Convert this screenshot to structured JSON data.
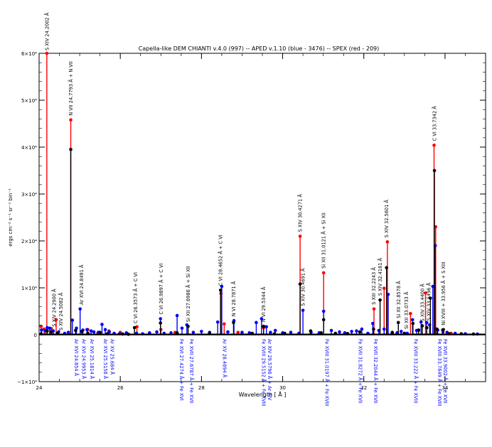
{
  "chart_data": {
    "type": "scatter",
    "title": "Capella-like DEM  CHIANTI v.4.0 (997) -- APED v.1.10 (blue - 3476) -- SPEX (red - 209)",
    "xlabel": "Wavelength [ Å ]",
    "ylabel": "ergs cm⁻² s⁻¹ sr⁻¹ bin⁻¹",
    "xlim": [
      24,
      35
    ],
    "ylim": [
      -10000,
      60000
    ],
    "x_ticks": [
      24,
      26,
      28,
      30,
      32,
      34
    ],
    "y_ticks": [
      {
        "value": -10000,
        "label": "−1×10⁴"
      },
      {
        "value": 0,
        "label": "0"
      },
      {
        "value": 10000,
        "label": "1×10⁴"
      },
      {
        "value": 20000,
        "label": "2×10⁴"
      },
      {
        "value": 30000,
        "label": "3×10⁴"
      },
      {
        "value": 40000,
        "label": "4×10⁴"
      },
      {
        "value": 50000,
        "label": "5×10⁴"
      },
      {
        "value": 60000,
        "label": "6×10⁴"
      }
    ],
    "colors": {
      "chianti": "#000000",
      "aped": "#0000ff",
      "spex": "#ff0000",
      "axis": "#000000"
    },
    "series": [
      {
        "name": "CHIANTI",
        "color": "#000000",
        "points": [
          [
            24.05,
            200
          ],
          [
            24.2,
            800
          ],
          [
            24.3,
            600
          ],
          [
            24.45,
            300
          ],
          [
            24.78,
            39500
          ],
          [
            24.9,
            900
          ],
          [
            25.05,
            700
          ],
          [
            25.2,
            300
          ],
          [
            25.5,
            500
          ],
          [
            25.68,
            200
          ],
          [
            26.06,
            150
          ],
          [
            26.2,
            100
          ],
          [
            26.35,
            1500
          ],
          [
            26.99,
            2500
          ],
          [
            27.4,
            400
          ],
          [
            27.67,
            1800
          ],
          [
            28.2,
            300
          ],
          [
            28.47,
            9500
          ],
          [
            28.79,
            2600
          ],
          [
            29.25,
            300
          ],
          [
            29.53,
            1800
          ],
          [
            29.8,
            200
          ],
          [
            30.05,
            300
          ],
          [
            30.43,
            10800
          ],
          [
            30.69,
            800
          ],
          [
            30.95,
            400
          ],
          [
            31.01,
            3200
          ],
          [
            31.3,
            300
          ],
          [
            31.6,
            250
          ],
          [
            31.9,
            600
          ],
          [
            32.24,
            1200
          ],
          [
            32.4,
            7400
          ],
          [
            32.56,
            14300
          ],
          [
            32.7,
            500
          ],
          [
            32.85,
            2600
          ],
          [
            33.0,
            300
          ],
          [
            33.21,
            2400
          ],
          [
            33.35,
            1000
          ],
          [
            33.44,
            1900
          ],
          [
            33.55,
            1500
          ],
          [
            33.64,
            7800
          ],
          [
            33.74,
            35000
          ],
          [
            33.8,
            1200
          ],
          [
            33.96,
            1100
          ],
          [
            34.1,
            200
          ],
          [
            34.4,
            200
          ],
          [
            34.7,
            150
          ]
        ]
      },
      {
        "name": "APED",
        "color": "#0000ff",
        "points": [
          [
            24.06,
            1000
          ],
          [
            24.15,
            900
          ],
          [
            24.2,
            1500
          ],
          [
            24.26,
            1400
          ],
          [
            24.35,
            800
          ],
          [
            24.48,
            600
          ],
          [
            24.63,
            300
          ],
          [
            24.72,
            500
          ],
          [
            24.82,
            3100
          ],
          [
            24.92,
            1400
          ],
          [
            25.01,
            5500
          ],
          [
            25.08,
            1000
          ],
          [
            25.18,
            1100
          ],
          [
            25.28,
            800
          ],
          [
            25.35,
            600
          ],
          [
            25.46,
            500
          ],
          [
            25.55,
            2200
          ],
          [
            25.63,
            1100
          ],
          [
            25.73,
            600
          ],
          [
            25.85,
            300
          ],
          [
            25.98,
            200
          ],
          [
            26.15,
            400
          ],
          [
            26.4,
            300
          ],
          [
            26.55,
            200
          ],
          [
            26.72,
            400
          ],
          [
            26.9,
            600
          ],
          [
            26.99,
            3400
          ],
          [
            27.08,
            300
          ],
          [
            27.25,
            400
          ],
          [
            27.4,
            4100
          ],
          [
            27.52,
            1400
          ],
          [
            27.64,
            2100
          ],
          [
            27.8,
            500
          ],
          [
            28.0,
            700
          ],
          [
            28.2,
            500
          ],
          [
            28.4,
            2700
          ],
          [
            28.5,
            10300
          ],
          [
            28.65,
            600
          ],
          [
            28.8,
            3000
          ],
          [
            29.0,
            500
          ],
          [
            29.18,
            400
          ],
          [
            29.35,
            2600
          ],
          [
            29.48,
            3400
          ],
          [
            29.6,
            1700
          ],
          [
            29.7,
            500
          ],
          [
            29.82,
            900
          ],
          [
            30.0,
            400
          ],
          [
            30.2,
            500
          ],
          [
            30.4,
            300
          ],
          [
            30.5,
            5200
          ],
          [
            30.7,
            500
          ],
          [
            30.9,
            400
          ],
          [
            31.01,
            5000
          ],
          [
            31.2,
            900
          ],
          [
            31.4,
            600
          ],
          [
            31.53,
            400
          ],
          [
            31.6,
            200
          ],
          [
            31.7,
            700
          ],
          [
            31.82,
            800
          ],
          [
            31.95,
            1200
          ],
          [
            32.1,
            300
          ],
          [
            32.22,
            2400
          ],
          [
            32.37,
            900
          ],
          [
            32.5,
            1200
          ],
          [
            32.6,
            8600
          ],
          [
            32.7,
            400
          ],
          [
            32.82,
            400
          ],
          [
            32.92,
            700
          ],
          [
            33.07,
            300
          ],
          [
            33.2,
            3200
          ],
          [
            33.3,
            900
          ],
          [
            33.41,
            2700
          ],
          [
            33.55,
            2600
          ],
          [
            33.62,
            2100
          ],
          [
            33.7,
            10300
          ],
          [
            33.76,
            19000
          ],
          [
            33.82,
            1000
          ],
          [
            33.94,
            1000
          ],
          [
            34.05,
            500
          ],
          [
            34.25,
            300
          ],
          [
            34.5,
            200
          ],
          [
            34.8,
            150
          ]
        ]
      },
      {
        "name": "SPEX",
        "color": "#ff0000",
        "points": [
          [
            24.05,
            1800
          ],
          [
            24.12,
            1200
          ],
          [
            24.19,
            60000
          ],
          [
            24.3,
            1300
          ],
          [
            24.42,
            3200
          ],
          [
            24.78,
            45800
          ],
          [
            25.2,
            1100
          ],
          [
            25.45,
            400
          ],
          [
            25.72,
            800
          ],
          [
            26.0,
            500
          ],
          [
            26.41,
            1700
          ],
          [
            27.0,
            1100
          ],
          [
            27.35,
            500
          ],
          [
            28.48,
            8800
          ],
          [
            28.56,
            2300
          ],
          [
            28.9,
            500
          ],
          [
            29.53,
            1500
          ],
          [
            30.43,
            21000
          ],
          [
            31.01,
            13200
          ],
          [
            32.25,
            5500
          ],
          [
            32.5,
            9900
          ],
          [
            32.58,
            19800
          ],
          [
            33.15,
            4500
          ],
          [
            33.35,
            900
          ],
          [
            33.52,
            8900
          ],
          [
            33.73,
            40400
          ],
          [
            33.77,
            23000
          ],
          [
            33.95,
            600
          ],
          [
            34.15,
            300
          ]
        ]
      }
    ],
    "labels_top": [
      {
        "x": 24.19,
        "text": "S   XIV 24.2002 Å"
      },
      {
        "x": 24.37,
        "text": "S   XIV 24.2900 Å"
      },
      {
        "x": 24.53,
        "text": "S   XIV 24.5082 Å"
      },
      {
        "x": 24.78,
        "text": "N   VII 24.7793 Å + N  VII"
      },
      {
        "x": 25.04,
        "text": "Ar XVI 24.8491 Å"
      },
      {
        "x": 26.37,
        "text": "C   VI 26.3573 Å + C  VI"
      },
      {
        "x": 27.0,
        "text": "C   VI 26.9897 Å + C  VI"
      },
      {
        "x": 27.67,
        "text": "Si XII 27.6986 Å + Si XII"
      },
      {
        "x": 28.47,
        "text": "C   VI 28.4652 Å + C  VI"
      },
      {
        "x": 28.79,
        "text": "N   VI 28.7871 Å"
      },
      {
        "x": 29.53,
        "text": "N   VI 29.5344 Å"
      },
      {
        "x": 30.43,
        "text": "S   XIV 30.4271 Å"
      },
      {
        "x": 30.5,
        "text": "S   XIV 30.4691 Å"
      },
      {
        "x": 31.01,
        "text": "Si XII 31.0121 Å + Si XII"
      },
      {
        "x": 32.24,
        "text": "S   XIII 32.2243 Å"
      },
      {
        "x": 32.4,
        "text": "S   XIV 32.4161 Å"
      },
      {
        "x": 32.56,
        "text": "S   XIV 32.5601 Å"
      },
      {
        "x": 32.85,
        "text": "Si XII 32.8578 Å"
      },
      {
        "x": 33.05,
        "text": "Si XII 33.0733 Å"
      },
      {
        "x": 33.44,
        "text": "S   XIV 33.4400 Å"
      },
      {
        "x": 33.6,
        "text": "S   XIV 33.5496 Å"
      },
      {
        "x": 33.74,
        "text": "C   VI 33.7342 Å"
      },
      {
        "x": 33.96,
        "text": "Ni XVIII + 33.956 Å + S  XIII"
      }
    ],
    "labels_bottom": [
      {
        "x": 24.83,
        "text": "Ar XVI 24.854 Å"
      },
      {
        "x": 25.02,
        "text": "Ar XVI 24.9953 Å"
      },
      {
        "x": 25.22,
        "text": "Ar XVI 25.1814 Å"
      },
      {
        "x": 25.55,
        "text": "Ar XVI 25.5158 Å"
      },
      {
        "x": 25.72,
        "text": "Ar XV 25.684 Å"
      },
      {
        "x": 27.42,
        "text": "Fe XVI 27.4274 Å + Fe XVI"
      },
      {
        "x": 27.67,
        "text": "Fe XVII 27.6787 Å + Fe XVII"
      },
      {
        "x": 28.48,
        "text": "Ar XV 28.4894 Å"
      },
      {
        "x": 29.45,
        "text": "Fe XVIII 29.5152 Å + Fe XVIII"
      },
      {
        "x": 29.6,
        "text": "Ar XIV 29.5796 Å + Ar XIV"
      },
      {
        "x": 31.01,
        "text": "Fe XVIII 31.0197 Å + Fe XVIII"
      },
      {
        "x": 31.83,
        "text": "Fe XVII 31.8272 Å + Fe XVII"
      },
      {
        "x": 32.21,
        "text": "Fe XVII 32.2044 Å + Fe XVII"
      },
      {
        "x": 33.2,
        "text": "Fe XVIII 33.222 Å + Fe XVIII"
      },
      {
        "x": 33.78,
        "text": "Fe XVIII 33.7649 Å + Fe XVIII"
      },
      {
        "x": 33.92,
        "text": "Fe XVII 33.9002 Å + Fe XVII"
      }
    ]
  }
}
